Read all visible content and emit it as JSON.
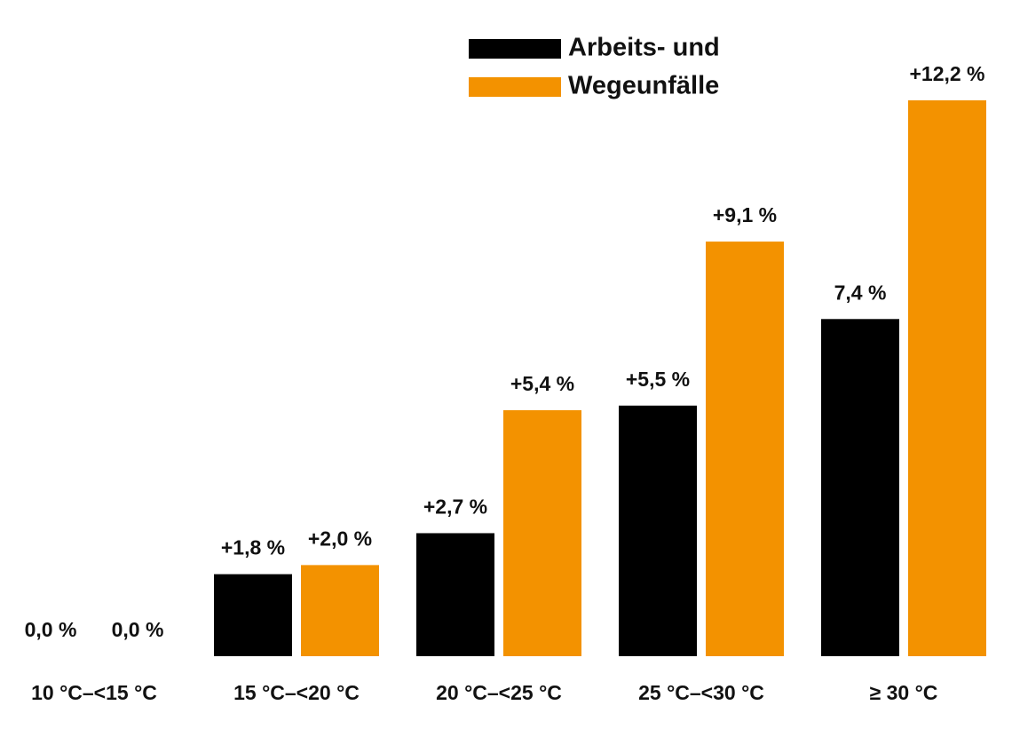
{
  "chart_data": {
    "type": "bar",
    "categories": [
      "10 °C–<15 °C",
      "15 °C–<20 °C",
      "20 °C–<25 °C",
      "25 °C–<30 °C",
      "≥ 30 °C"
    ],
    "series": [
      {
        "name": "Arbeits- und",
        "color": "#000000",
        "values": [
          0.0,
          1.8,
          2.7,
          5.5,
          7.4
        ],
        "value_labels": [
          "0,0 %",
          "+1,8 %",
          "+2,7 %",
          "+5,5 %",
          "7,4 %"
        ]
      },
      {
        "name": "Wegeunfälle",
        "color": "#f39200",
        "values": [
          0.0,
          2.0,
          5.4,
          9.1,
          12.2
        ],
        "value_labels": [
          "0,0 %",
          "+2,0 %",
          "+5,4 %",
          "+9,1 %",
          "+12,2 %"
        ]
      }
    ]
  }
}
